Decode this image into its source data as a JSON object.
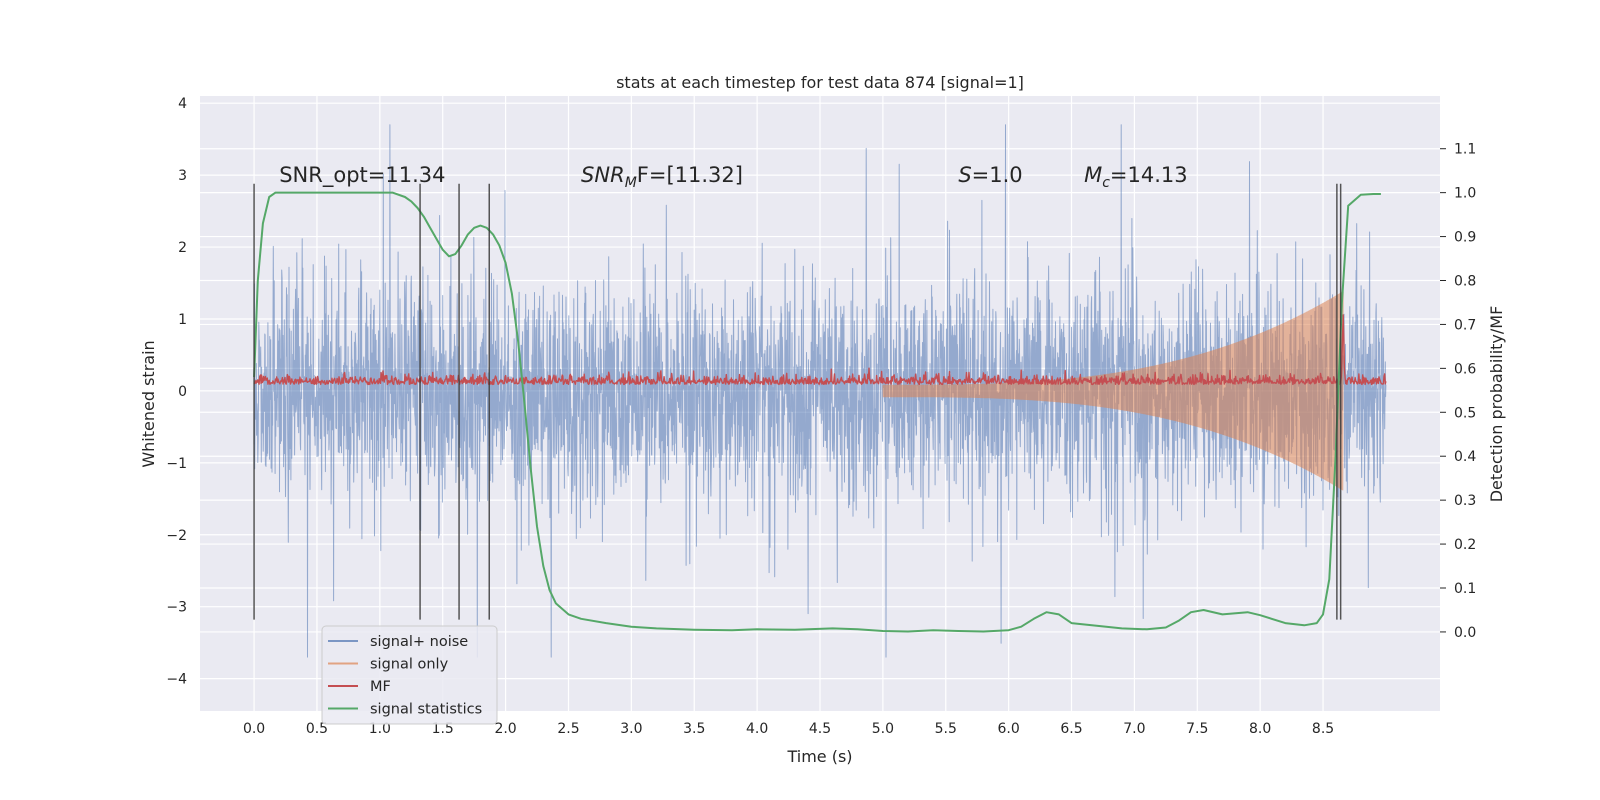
{
  "chart_data": {
    "type": "line",
    "title": "stats at each timestep for test data 874 [signal=1]",
    "xlabel": "Time (s)",
    "ylabel": "Whitened strain",
    "y2label": "Detection probability/MF",
    "xlim": [
      -0.43,
      9.43
    ],
    "ylim": [
      -4.45,
      4.1
    ],
    "y2lim": [
      -0.18,
      1.22
    ],
    "xticks": [
      "0.0",
      "0.5",
      "1.0",
      "1.5",
      "2.0",
      "2.5",
      "3.0",
      "3.5",
      "4.0",
      "4.5",
      "5.0",
      "5.5",
      "6.0",
      "6.5",
      "7.0",
      "7.5",
      "8.0",
      "8.5"
    ],
    "yticks": [
      "−4",
      "−3",
      "−2",
      "−1",
      "0",
      "1",
      "2",
      "3",
      "4"
    ],
    "y2ticks": [
      "0.0",
      "0.1",
      "0.2",
      "0.3",
      "0.4",
      "0.5",
      "0.6",
      "0.7",
      "0.8",
      "0.9",
      "1.0",
      "1.1"
    ],
    "grid": true,
    "legend_position": "lower-left",
    "annotations": [
      {
        "text": "SNR_opt=11.34",
        "x": 0.2,
        "y": 3.0
      },
      {
        "text": "SNR",
        "sub": "M",
        "tail": "F=[11.32]",
        "x": 2.6,
        "y": 3.0
      },
      {
        "text": "S",
        "tail": "=1.0",
        "x": 5.6,
        "y": 3.0
      },
      {
        "text": "M",
        "sub": "c",
        "tail": "=14.13",
        "x": 6.6,
        "y": 3.0
      }
    ],
    "vertical_markers": [
      0.0,
      1.32,
      1.63,
      1.87,
      8.61,
      8.64
    ],
    "vertical_marker_range": [
      -3.18,
      2.88
    ],
    "series": [
      {
        "name": "signal+ noise",
        "color": "#4c72b0",
        "opacity": 0.55,
        "axis": "left",
        "kind": "noise",
        "t_range": [
          0.0,
          9.0
        ],
        "sigma": 0.75,
        "max_abs": 3.7
      },
      {
        "name": "signal only",
        "color": "#dd8452",
        "opacity": 0.55,
        "axis": "left",
        "kind": "chirp",
        "t_range": [
          5.0,
          8.66
        ],
        "envelope_end": 1.3
      },
      {
        "name": "MF",
        "color": "#c44e52",
        "opacity": 1.0,
        "axis": "left",
        "kind": "mf",
        "t_range": [
          0.0,
          9.0
        ],
        "baseline": 0.12,
        "peak": {
          "t": 8.66,
          "value": 1.0
        }
      },
      {
        "name": "signal statistics",
        "color": "#55a868",
        "opacity": 1.0,
        "axis": "right",
        "kind": "line",
        "x": [
          0.0,
          0.03,
          0.07,
          0.12,
          0.17,
          0.25,
          0.4,
          0.6,
          0.8,
          1.0,
          1.1,
          1.2,
          1.25,
          1.3,
          1.35,
          1.4,
          1.45,
          1.5,
          1.55,
          1.6,
          1.65,
          1.7,
          1.75,
          1.8,
          1.85,
          1.9,
          1.95,
          2.0,
          2.05,
          2.1,
          2.15,
          2.2,
          2.25,
          2.3,
          2.35,
          2.4,
          2.5,
          2.6,
          2.8,
          3.0,
          3.2,
          3.5,
          3.8,
          4.0,
          4.3,
          4.6,
          4.8,
          5.0,
          5.2,
          5.4,
          5.6,
          5.8,
          6.0,
          6.1,
          6.2,
          6.3,
          6.4,
          6.5,
          6.7,
          6.9,
          7.1,
          7.25,
          7.35,
          7.45,
          7.55,
          7.7,
          7.9,
          8.0,
          8.2,
          8.35,
          8.45,
          8.5,
          8.55,
          8.6,
          8.65,
          8.7,
          8.8,
          8.9,
          8.96
        ],
        "y": [
          0.58,
          0.8,
          0.93,
          0.99,
          1.0,
          1.0,
          1.0,
          1.0,
          1.0,
          1.0,
          1.0,
          0.99,
          0.98,
          0.965,
          0.945,
          0.92,
          0.895,
          0.87,
          0.855,
          0.86,
          0.88,
          0.905,
          0.92,
          0.925,
          0.92,
          0.905,
          0.88,
          0.84,
          0.77,
          0.66,
          0.52,
          0.37,
          0.24,
          0.15,
          0.095,
          0.065,
          0.04,
          0.03,
          0.02,
          0.012,
          0.008,
          0.005,
          0.004,
          0.006,
          0.005,
          0.008,
          0.006,
          0.002,
          0.001,
          0.004,
          0.002,
          0.001,
          0.004,
          0.012,
          0.03,
          0.045,
          0.04,
          0.02,
          0.014,
          0.008,
          0.006,
          0.01,
          0.025,
          0.045,
          0.05,
          0.04,
          0.045,
          0.038,
          0.02,
          0.015,
          0.02,
          0.04,
          0.12,
          0.4,
          0.75,
          0.97,
          0.995,
          0.997,
          0.997
        ]
      }
    ]
  }
}
